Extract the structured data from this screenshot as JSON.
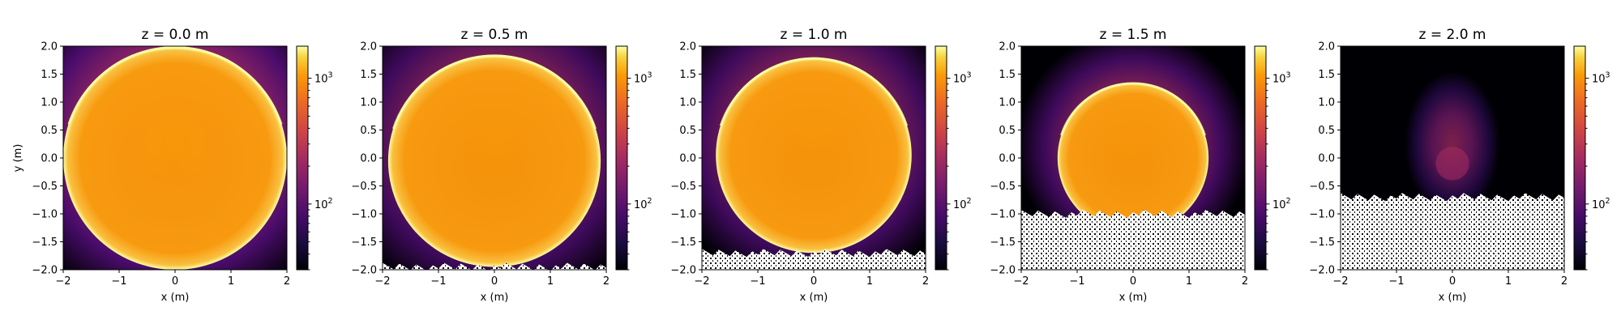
{
  "chart_data": [
    {
      "type": "heatmap",
      "title": "z = 0.0 m",
      "xlabel": "x (m)",
      "ylabel": "y (m)",
      "xlim": [
        -2,
        2
      ],
      "ylim": [
        -2,
        2
      ],
      "xticks": [
        -2,
        -1,
        0,
        1,
        2
      ],
      "yticks": [
        -2.0,
        -1.5,
        -1.0,
        -0.5,
        0.0,
        0.5,
        1.0,
        1.5,
        2.0
      ],
      "xtick_labels": [
        "−2",
        "−1",
        "0",
        "1",
        "2"
      ],
      "ytick_labels": [
        "−2.0",
        "−1.5",
        "−1.0",
        "−0.5",
        "0.0",
        "0.5",
        "1.0",
        "1.5",
        "2.0"
      ],
      "colormap": "inferno",
      "color_scale": "log",
      "colorbar_ticks": [
        {
          "value": 1000,
          "base": "10",
          "exp": "3"
        },
        {
          "value": 100,
          "base": "10",
          "exp": "2"
        }
      ],
      "bright_disk": {
        "center": [
          0,
          0.0
        ],
        "radius": 2.0
      },
      "empty_region_below_y": null
    },
    {
      "type": "heatmap",
      "title": "z = 0.5 m",
      "xlabel": "x (m)",
      "ylabel": "",
      "xlim": [
        -2,
        2
      ],
      "ylim": [
        -2,
        2
      ],
      "xticks": [
        -2,
        -1,
        0,
        1,
        2
      ],
      "yticks": [
        -2.0,
        -1.5,
        -1.0,
        -0.5,
        0.0,
        0.5,
        1.0,
        1.5,
        2.0
      ],
      "xtick_labels": [
        "−2",
        "−1",
        "0",
        "1",
        "2"
      ],
      "ytick_labels": [
        "−2.0",
        "−1.5",
        "−1.0",
        "−0.5",
        "0.0",
        "0.5",
        "1.0",
        "1.5",
        "2.0"
      ],
      "colormap": "inferno",
      "color_scale": "log",
      "colorbar_ticks": [
        {
          "value": 1000,
          "base": "10",
          "exp": "3"
        },
        {
          "value": 100,
          "base": "10",
          "exp": "2"
        }
      ],
      "bright_disk": {
        "center": [
          0,
          -0.05
        ],
        "radius": 1.9
      },
      "empty_region_below_y": -1.95
    },
    {
      "type": "heatmap",
      "title": "z = 1.0 m",
      "xlabel": "x (m)",
      "ylabel": "",
      "xlim": [
        -2,
        2
      ],
      "ylim": [
        -2,
        2
      ],
      "xticks": [
        -2,
        -1,
        0,
        1,
        2
      ],
      "yticks": [
        -2.0,
        -1.5,
        -1.0,
        -0.5,
        0.0,
        0.5,
        1.0,
        1.5,
        2.0
      ],
      "xtick_labels": [
        "−2",
        "−1",
        "0",
        "1",
        "2"
      ],
      "ytick_labels": [
        "−2.0",
        "−1.5",
        "−1.0",
        "−0.5",
        "0.0",
        "0.5",
        "1.0",
        "1.5",
        "2.0"
      ],
      "colormap": "inferno",
      "color_scale": "log",
      "colorbar_ticks": [
        {
          "value": 1000,
          "base": "10",
          "exp": "3"
        },
        {
          "value": 100,
          "base": "10",
          "exp": "2"
        }
      ],
      "bright_disk": {
        "center": [
          0,
          0.05
        ],
        "radius": 1.75
      },
      "empty_region_below_y": -1.7
    },
    {
      "type": "heatmap",
      "title": "z = 1.5 m",
      "xlabel": "x (m)",
      "ylabel": "",
      "xlim": [
        -2,
        2
      ],
      "ylim": [
        -2,
        2
      ],
      "xticks": [
        -2,
        -1,
        0,
        1,
        2
      ],
      "yticks": [
        -2.0,
        -1.5,
        -1.0,
        -0.5,
        0.0,
        0.5,
        1.0,
        1.5,
        2.0
      ],
      "xtick_labels": [
        "−2",
        "−1",
        "0",
        "1",
        "2"
      ],
      "ytick_labels": [
        "−2.0",
        "−1.5",
        "−1.0",
        "−0.5",
        "0.0",
        "0.5",
        "1.0",
        "1.5",
        "2.0"
      ],
      "colormap": "inferno",
      "color_scale": "log",
      "colorbar_ticks": [
        {
          "value": 1000,
          "base": "10",
          "exp": "3"
        },
        {
          "value": 100,
          "base": "10",
          "exp": "2"
        }
      ],
      "bright_disk": {
        "center": [
          0,
          0.0
        ],
        "radius": 1.35
      },
      "empty_region_below_y": -1.0
    },
    {
      "type": "heatmap",
      "title": "z = 2.0 m",
      "xlabel": "x (m)",
      "ylabel": "",
      "xlim": [
        -2,
        2
      ],
      "ylim": [
        -2,
        2
      ],
      "xticks": [
        -2,
        -1,
        0,
        1,
        2
      ],
      "yticks": [
        -2.0,
        -1.5,
        -1.0,
        -0.5,
        0.0,
        0.5,
        1.0,
        1.5,
        2.0
      ],
      "xtick_labels": [
        "−2",
        "−1",
        "0",
        "1",
        "2"
      ],
      "ytick_labels": [
        "−2.0",
        "−1.5",
        "−1.0",
        "−0.5",
        "0.0",
        "0.5",
        "1.0",
        "1.5",
        "2.0"
      ],
      "colormap": "inferno",
      "color_scale": "log",
      "colorbar_ticks": [
        {
          "value": 1000,
          "base": "10",
          "exp": "3"
        },
        {
          "value": 100,
          "base": "10",
          "exp": "2"
        }
      ],
      "bright_disk": {
        "center": [
          0,
          -0.1
        ],
        "radius": 0.3
      },
      "empty_region_below_y": -0.7
    }
  ]
}
